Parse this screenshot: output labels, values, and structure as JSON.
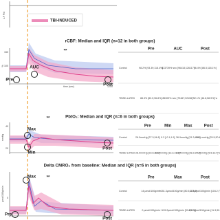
{
  "top": {
    "axis_label": "LF Pct",
    "legend": "TBI-INDUCED"
  },
  "panels": [
    {
      "title": "rCBF: Median and IQR (n=12 in both groups)",
      "y_label": "%",
      "yticks": [
        "150",
        "100",
        "50"
      ],
      "x_label": "time (sec)",
      "xticks": [
        "0",
        "1200"
      ],
      "markers": [
        "Pre",
        "AUC",
        "Post"
      ],
      "significance": "**",
      "table": {
        "header": [
          "Pre",
          "AUC",
          "Post"
        ],
        "rows": [
          [
            "Control",
            "98.2% [93.39;118.4%]",
            "113739%·sec [96418;126117]",
            "96.4% [86.5;118.1%]"
          ],
          [
            "TBISD-LATED",
            "88.3% [83.0;96.8%]",
            "85309%·sec [79467;92156]*",
            "52.1% [46.6;58.9%]*a"
          ]
        ]
      }
    },
    {
      "title": "PbtO₂: Median and IQR (n=6 in both groups)",
      "y_label": "mmHg",
      "yticks": [
        "40",
        "20"
      ],
      "x_label": "",
      "xticks": [],
      "markers": [
        "Max",
        "Min",
        "Post"
      ],
      "significance": "**",
      "table": {
        "header": [
          "Pre",
          "Min",
          "Max",
          "Post"
        ],
        "rows": [
          [
            "Control",
            "26.0mmHg [27.3;34.8]",
            "0.3 [-0.1;1.9]",
            "36.9mmHg [31.3;40.6]",
            "28.1 mmHg [25.5;30.4]"
          ],
          [
            "TBISD-LATED",
            "28.9mmHg [23.6;32.8]",
            "16.4mmHg [13.2;19.3]*",
            "31.9mmHg [28.2;37.2]",
            "9.0mmHg [5.5;13.4]*a"
          ]
        ]
      }
    },
    {
      "title": "Delta CMRO₂ from baseline: Median and IQR (n=6 in both groups)",
      "y_label": "µmol/100g/min",
      "yticks": [
        "0"
      ],
      "x_label": "",
      "xticks": [],
      "markers": [
        "Max",
        "Pre",
        "Post"
      ],
      "significance": "**",
      "table": {
        "header": [
          "Pre",
          "Max",
          "Post"
        ],
        "rows": [
          [
            "Control",
            "14 µmol/100g/min",
            "+151.3µmol/100g/min [80.5;224.9]",
            "-5.7µmol/100g/min [104.2;7]"
          ],
          [
            "TBISD-LATED",
            "0 µmol/100g/min",
            "+139.2µmol/100g/min [93.8;177]",
            "-70.3µmol/100g/min [11.3;30.1]"
          ]
        ]
      }
    }
  ]
}
